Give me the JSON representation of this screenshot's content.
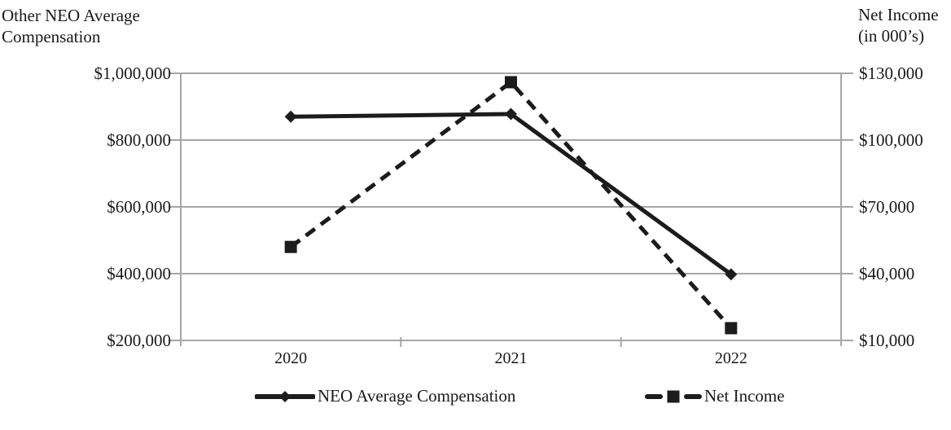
{
  "left_axis_title": {
    "line1": "Other NEO Average",
    "line2": "Compensation"
  },
  "right_axis_title": {
    "line1": "Net Income",
    "line2": "(in 000’s)"
  },
  "chart_data": {
    "type": "line",
    "title": "",
    "categories": [
      "2020",
      "2021",
      "2022"
    ],
    "series": [
      {
        "name": "NEO Average Compensation",
        "axis": "left",
        "style": "solid",
        "marker": "diamond",
        "values": [
          870000,
          878000,
          398000
        ]
      },
      {
        "name": "Net Income",
        "axis": "right",
        "style": "dashed",
        "marker": "square",
        "values": [
          52000,
          126000,
          15500
        ]
      }
    ],
    "left_axis": {
      "ticks": [
        "$1,000,000",
        "$800,000",
        "$600,000",
        "$400,000",
        "$200,000"
      ],
      "values": [
        1000000,
        800000,
        600000,
        400000,
        200000
      ],
      "min": 200000,
      "max": 1000000
    },
    "right_axis": {
      "ticks": [
        "$130,000",
        "$100,000",
        "$70,000",
        "$40,000",
        "$10,000"
      ],
      "values": [
        130000,
        100000,
        70000,
        40000,
        10000
      ],
      "min": 10000,
      "max": 130000
    },
    "legend": [
      "NEO Average Compensation",
      "Net Income"
    ],
    "legend_position": "bottom",
    "grid": "horizontal",
    "colors": {
      "series": "#1c1c1c",
      "grid": "#a6a6a6",
      "text": "#1a1a1a",
      "background": "#ffffff"
    }
  }
}
